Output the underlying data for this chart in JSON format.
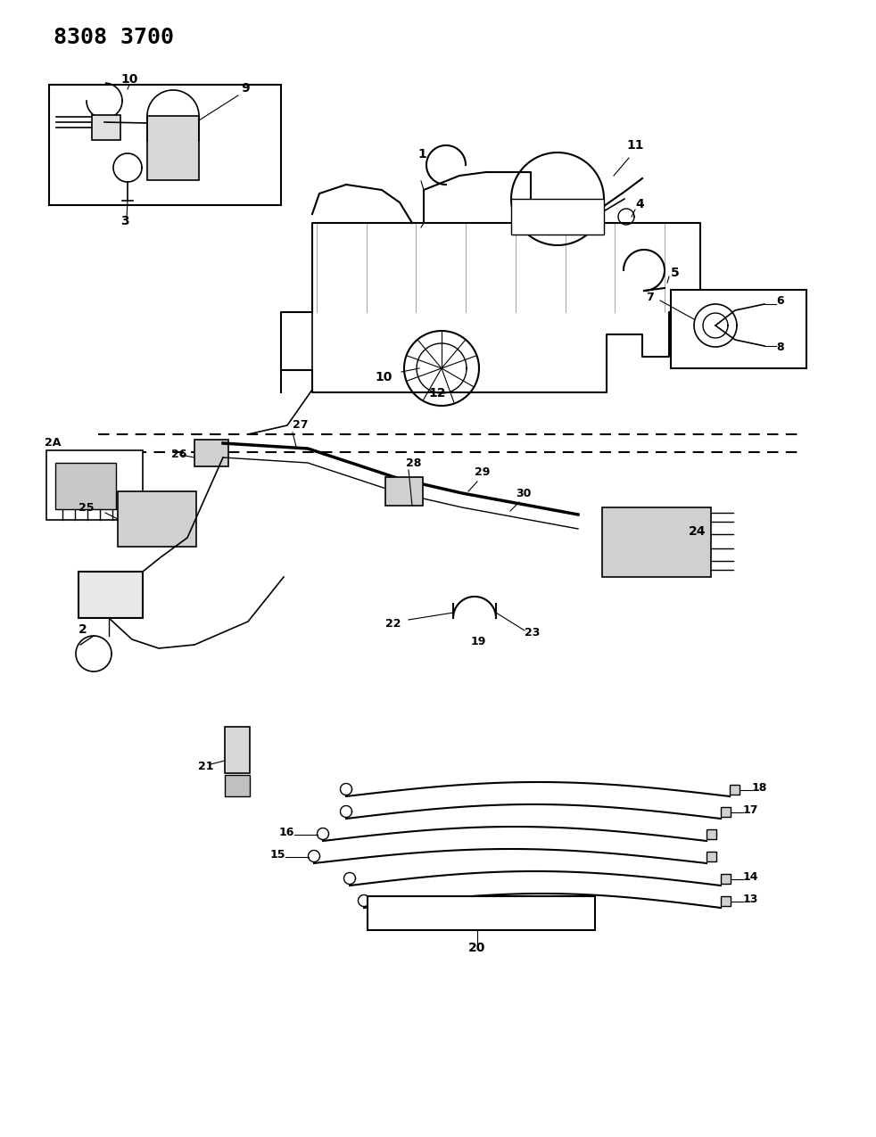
{
  "title": "8308 3700",
  "background_color": "#ffffff",
  "line_color": "#000000",
  "figsize": [
    9.82,
    12.75
  ],
  "dpi": 100
}
